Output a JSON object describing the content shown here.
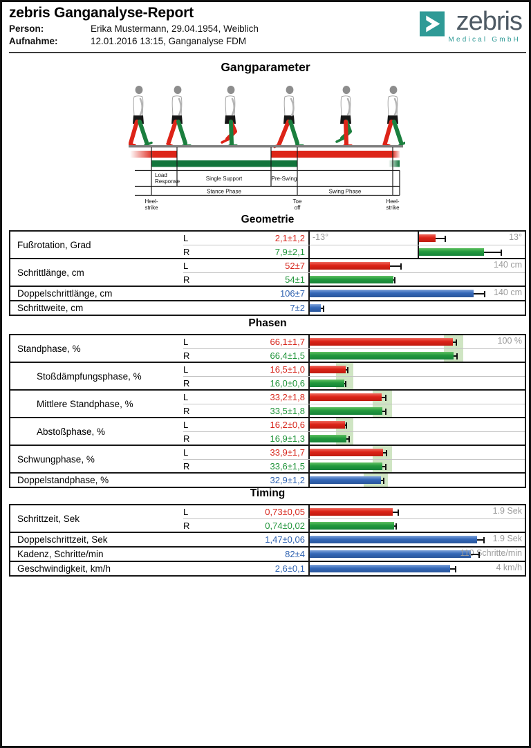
{
  "header": {
    "title": "zebris Ganganalyse-Report",
    "person": {
      "label": "Person:",
      "value": "Erika Mustermann, 29.04.1954, Weiblich"
    },
    "recording": {
      "label": "Aufnahme:",
      "value": "12.01.2016 13:15, Ganganalyse FDM"
    },
    "logo": {
      "brand": "zebris",
      "subtitle": "Medical GmbH",
      "accent_color": "#2f9a96",
      "text_color": "#4e5a64"
    }
  },
  "page_title": "Gangparameter",
  "gait_diagram": {
    "phase_cells": [
      {
        "lines": [
          "Load",
          "Response"
        ]
      },
      {
        "lines": [
          "Single Support"
        ]
      },
      {
        "lines": [
          "Pre-Swing"
        ]
      }
    ],
    "phase_groups": [
      "Stance Phase",
      "Swing Phase"
    ],
    "events": [
      {
        "lines": [
          "Heel-",
          "strike"
        ]
      },
      {
        "lines": [
          "Toe",
          "off"
        ]
      },
      {
        "lines": [
          "Heel-",
          "strike"
        ]
      }
    ],
    "left_band_color": "#dd2418",
    "right_band_color": "#12753c"
  },
  "colors": {
    "left": "#dd2418",
    "right": "#22993d",
    "both": "#3468b8",
    "normative_band": "#cfe5c3",
    "scale_label": "#9b9b9b"
  },
  "chart_data": [
    {
      "type": "bar",
      "title": "Geometrie",
      "rows": [
        {
          "label": "Fußrotation, Grad",
          "indent": false,
          "scale": {
            "min": -13,
            "max": 13
          },
          "scale_label_left": "-13°",
          "scale_label_right": "13°",
          "entries": [
            {
              "side": "L",
              "display": "2,1±1,2",
              "value": 2.1,
              "error": 1.2,
              "color": "left"
            },
            {
              "side": "R",
              "display": "7,9±2,1",
              "value": 7.9,
              "error": 2.1,
              "color": "right"
            }
          ]
        },
        {
          "label": "Schrittlänge, cm",
          "indent": false,
          "scale": {
            "min": 0,
            "max": 140
          },
          "scale_label_right": "140 cm",
          "entries": [
            {
              "side": "L",
              "display": "52±7",
              "value": 52,
              "error": 7,
              "color": "left"
            },
            {
              "side": "R",
              "display": "54±1",
              "value": 54,
              "error": 1,
              "color": "right"
            }
          ]
        },
        {
          "label": "Doppelschrittlänge, cm",
          "indent": false,
          "scale": {
            "min": 0,
            "max": 140
          },
          "scale_label_right": "140 cm",
          "entries": [
            {
              "side": null,
              "display": "106±7",
              "value": 106,
              "error": 7,
              "color": "both"
            }
          ]
        },
        {
          "label": "Schrittweite, cm",
          "indent": false,
          "scale": {
            "min": 0,
            "max": 140
          },
          "entries": [
            {
              "side": null,
              "display": "7±2",
              "value": 7,
              "error": 2,
              "color": "both"
            }
          ]
        }
      ]
    },
    {
      "type": "bar",
      "title": "Phasen",
      "rows": [
        {
          "label": "Standphase, %",
          "indent": false,
          "scale": {
            "min": 0,
            "max": 100
          },
          "scale_label_right": "100 %",
          "band": {
            "from": 62,
            "to": 71
          },
          "entries": [
            {
              "side": "L",
              "display": "66,1±1,7",
              "value": 66.1,
              "error": 1.7,
              "color": "left"
            },
            {
              "side": "R",
              "display": "66,4±1,5",
              "value": 66.4,
              "error": 1.5,
              "color": "right"
            }
          ]
        },
        {
          "label": "Stoßdämpfungsphase, %",
          "indent": true,
          "scale": {
            "min": 0,
            "max": 100
          },
          "band": {
            "from": 12,
            "to": 20
          },
          "entries": [
            {
              "side": "L",
              "display": "16,5±1,0",
              "value": 16.5,
              "error": 1.0,
              "color": "left"
            },
            {
              "side": "R",
              "display": "16,0±0,6",
              "value": 16.0,
              "error": 0.6,
              "color": "right"
            }
          ]
        },
        {
          "label": "Mittlere Standphase, %",
          "indent": true,
          "scale": {
            "min": 0,
            "max": 100
          },
          "band": {
            "from": 29,
            "to": 38
          },
          "entries": [
            {
              "side": "L",
              "display": "33,2±1,8",
              "value": 33.2,
              "error": 1.8,
              "color": "left"
            },
            {
              "side": "R",
              "display": "33,5±1,8",
              "value": 33.5,
              "error": 1.8,
              "color": "right"
            }
          ]
        },
        {
          "label": "Abstoßphase, %",
          "indent": true,
          "scale": {
            "min": 0,
            "max": 100
          },
          "band": {
            "from": 12,
            "to": 20
          },
          "entries": [
            {
              "side": "L",
              "display": "16,2±0,6",
              "value": 16.2,
              "error": 0.6,
              "color": "left"
            },
            {
              "side": "R",
              "display": "16,9±1,3",
              "value": 16.9,
              "error": 1.3,
              "color": "right"
            }
          ]
        },
        {
          "label": "Schwungphase, %",
          "indent": false,
          "scale": {
            "min": 0,
            "max": 100
          },
          "band": {
            "from": 29,
            "to": 38
          },
          "entries": [
            {
              "side": "L",
              "display": "33,9±1,7",
              "value": 33.9,
              "error": 1.7,
              "color": "left"
            },
            {
              "side": "R",
              "display": "33,6±1,5",
              "value": 33.6,
              "error": 1.5,
              "color": "right"
            }
          ]
        },
        {
          "label": "Doppelstandphase, %",
          "indent": false,
          "scale": {
            "min": 0,
            "max": 100
          },
          "band": {
            "from": 25,
            "to": 36
          },
          "entries": [
            {
              "side": null,
              "display": "32,9±1,2",
              "value": 32.9,
              "error": 1.2,
              "color": "both"
            }
          ]
        }
      ]
    },
    {
      "type": "bar",
      "title": "Timing",
      "rows": [
        {
          "label": "Schrittzeit, Sek",
          "indent": false,
          "scale": {
            "min": 0,
            "max": 1.9
          },
          "scale_label_right": "1.9 Sek",
          "entries": [
            {
              "side": "L",
              "display": "0,73±0,05",
              "value": 0.73,
              "error": 0.05,
              "color": "left"
            },
            {
              "side": "R",
              "display": "0,74±0,02",
              "value": 0.74,
              "error": 0.02,
              "color": "right"
            }
          ]
        },
        {
          "label": "Doppelschrittzeit, Sek",
          "indent": false,
          "scale": {
            "min": 0,
            "max": 1.9
          },
          "scale_label_right": "1.9 Sek",
          "entries": [
            {
              "side": null,
              "display": "1,47±0,06",
              "value": 1.47,
              "error": 0.06,
              "color": "both"
            }
          ]
        },
        {
          "label": "Kadenz, Schritte/min",
          "indent": false,
          "scale": {
            "min": 0,
            "max": 110
          },
          "scale_label_right": "110 Schritte/min",
          "entries": [
            {
              "side": null,
              "display": "82±4",
              "value": 82,
              "error": 4,
              "color": "both"
            }
          ]
        },
        {
          "label": "Geschwindigkeit, km/h",
          "indent": false,
          "scale": {
            "min": 0,
            "max": 4
          },
          "scale_label_right": "4 km/h",
          "entries": [
            {
              "side": null,
              "display": "2,6±0,1",
              "value": 2.6,
              "error": 0.1,
              "color": "both"
            }
          ]
        }
      ]
    }
  ]
}
